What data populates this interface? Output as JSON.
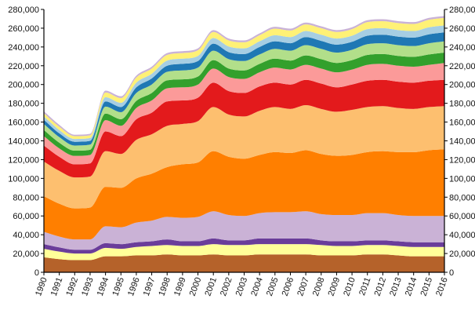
{
  "chart_data": {
    "type": "area",
    "stacked": true,
    "curve": "smooth",
    "title": "",
    "xlabel": "",
    "ylabel": "",
    "x": [
      1990,
      1991,
      1992,
      1993,
      1994,
      1995,
      1996,
      1997,
      1998,
      1999,
      2000,
      2001,
      2002,
      2003,
      2004,
      2005,
      2006,
      2007,
      2008,
      2009,
      2010,
      2011,
      2012,
      2013,
      2014,
      2015,
      2016
    ],
    "ylim": [
      0,
      280000
    ],
    "yticks": [
      0,
      20000,
      40000,
      60000,
      80000,
      100000,
      120000,
      140000,
      160000,
      180000,
      200000,
      220000,
      240000,
      260000,
      280000
    ],
    "ytick_labels_left": [
      "0",
      "20,000",
      "40,000",
      "60,000",
      "80,000",
      "100,000",
      "120,000",
      "140,000",
      "160,000",
      "180,000",
      "200,000",
      "220,000",
      "240,000",
      "260,000",
      "280,000"
    ],
    "ytick_labels_right": [
      "0",
      "20,000",
      "40,000",
      "60,000",
      "80,000",
      "100,000",
      "120,000",
      "140,000",
      "160,000",
      "180,000",
      "200,000",
      "220,000",
      "240,000",
      "260,000",
      "280,000"
    ],
    "xtick_labels": [
      "1990",
      "1991",
      "1992",
      "1993",
      "1994",
      "1995",
      "1996",
      "1997",
      "1998",
      "1999",
      "2000",
      "2001",
      "2002",
      "2003",
      "2004",
      "2005",
      "2006",
      "2007",
      "2008",
      "2009",
      "2010",
      "2011",
      "2012",
      "2013",
      "2014",
      "2015",
      "2016"
    ],
    "legend": "none",
    "grid": false,
    "series": [
      {
        "color": "#b5622a",
        "values": [
          16000,
          14000,
          13000,
          13000,
          17000,
          17000,
          18000,
          18000,
          19000,
          18000,
          18000,
          19000,
          18000,
          18000,
          19000,
          19000,
          19000,
          19000,
          18000,
          18000,
          18000,
          19000,
          19000,
          18000,
          17000,
          17000,
          17000
        ]
      },
      {
        "color": "#ffff99",
        "values": [
          9000,
          8000,
          7000,
          7000,
          9000,
          8000,
          9000,
          10000,
          10000,
          10000,
          10000,
          11000,
          11000,
          11000,
          11000,
          11000,
          11000,
          11000,
          11000,
          10000,
          10000,
          10000,
          10000,
          10000,
          10000,
          10000,
          10000
        ]
      },
      {
        "color": "#6a3d9a",
        "values": [
          5000,
          4500,
          4000,
          4000,
          5000,
          5000,
          5000,
          5000,
          6000,
          5000,
          5000,
          6000,
          5000,
          5000,
          6000,
          6000,
          6000,
          6000,
          5000,
          5000,
          5000,
          5000,
          5000,
          5000,
          5000,
          5000,
          5000
        ]
      },
      {
        "color": "#cab2d6",
        "values": [
          13000,
          11500,
          11000,
          11000,
          18000,
          18000,
          21000,
          22000,
          24000,
          25000,
          26000,
          29000,
          27000,
          26000,
          27000,
          28000,
          28000,
          29000,
          28000,
          28000,
          28000,
          29000,
          29000,
          28000,
          28000,
          28000,
          28000
        ]
      },
      {
        "color": "#ff7f00",
        "values": [
          38000,
          35000,
          33000,
          34000,
          42000,
          42000,
          47000,
          50000,
          53000,
          57000,
          58000,
          64000,
          62000,
          61000,
          62000,
          64000,
          63000,
          65000,
          64000,
          63000,
          64000,
          65000,
          66000,
          67000,
          68000,
          70000,
          71000
        ]
      },
      {
        "color": "#fdbf6f",
        "values": [
          37000,
          35000,
          33000,
          33000,
          38000,
          36000,
          41000,
          42000,
          44000,
          43000,
          44000,
          47000,
          45000,
          45000,
          47000,
          48000,
          47000,
          48000,
          48000,
          47000,
          48000,
          48000,
          48000,
          47000,
          46000,
          46000,
          46000
        ]
      },
      {
        "color": "#e31a1c",
        "values": [
          17000,
          15000,
          14000,
          14000,
          21000,
          19000,
          22000,
          23000,
          26000,
          25000,
          25000,
          26000,
          25000,
          25000,
          26000,
          26000,
          26000,
          27000,
          27000,
          26000,
          27000,
          28000,
          28000,
          28000,
          28000,
          28000,
          28000
        ]
      },
      {
        "color": "#fb9a99",
        "values": [
          10000,
          9000,
          9000,
          9000,
          12000,
          11000,
          12000,
          13000,
          14000,
          14000,
          14000,
          15000,
          15000,
          15000,
          15000,
          16000,
          16000,
          16000,
          16000,
          16000,
          16000,
          17000,
          17000,
          17000,
          17000,
          17000,
          18000
        ]
      },
      {
        "color": "#33a02c",
        "values": [
          6500,
          6000,
          5500,
          5500,
          7000,
          7000,
          7500,
          8000,
          8500,
          8500,
          8500,
          9000,
          9000,
          9000,
          9000,
          9500,
          9500,
          10000,
          10000,
          10000,
          10000,
          10500,
          10500,
          10500,
          10500,
          11000,
          11000
        ]
      },
      {
        "color": "#b2df8a",
        "values": [
          6500,
          6000,
          5500,
          5500,
          7500,
          7500,
          8500,
          9000,
          9000,
          9500,
          9500,
          10000,
          10000,
          10000,
          10000,
          10500,
          10500,
          11000,
          11000,
          11000,
          11000,
          11500,
          11500,
          11500,
          11500,
          12000,
          12000
        ]
      },
      {
        "color": "#1f78b4",
        "values": [
          4500,
          4000,
          4000,
          4000,
          5500,
          5500,
          6000,
          6500,
          6500,
          7000,
          7000,
          7500,
          7500,
          7500,
          8000,
          8000,
          8000,
          8500,
          8500,
          8500,
          8500,
          9000,
          9000,
          9000,
          9000,
          9500,
          9500
        ]
      },
      {
        "color": "#a6cee3",
        "values": [
          3500,
          3500,
          3000,
          3000,
          4500,
          4500,
          5000,
          5000,
          5500,
          5500,
          5500,
          6000,
          6000,
          6000,
          6000,
          6500,
          6500,
          6500,
          6500,
          6500,
          6500,
          7000,
          7000,
          7000,
          7000,
          7500,
          7500
        ]
      },
      {
        "color": "#fff176",
        "values": [
          3500,
          3500,
          3000,
          3000,
          5000,
          5000,
          5500,
          5500,
          6000,
          6000,
          6000,
          6500,
          6500,
          6500,
          6500,
          7000,
          7000,
          7000,
          7000,
          7000,
          7000,
          7500,
          7500,
          7500,
          7500,
          8000,
          8000
        ]
      },
      {
        "color": "#c9b2d6",
        "values": [
          2000,
          2000,
          1500,
          1500,
          2000,
          2000,
          2000,
          2000,
          2000,
          2000,
          2000,
          2000,
          2000,
          2000,
          2000,
          2000,
          2000,
          2000,
          2000,
          2000,
          2000,
          2000,
          2000,
          2000,
          2000,
          2000,
          2000
        ]
      }
    ]
  }
}
